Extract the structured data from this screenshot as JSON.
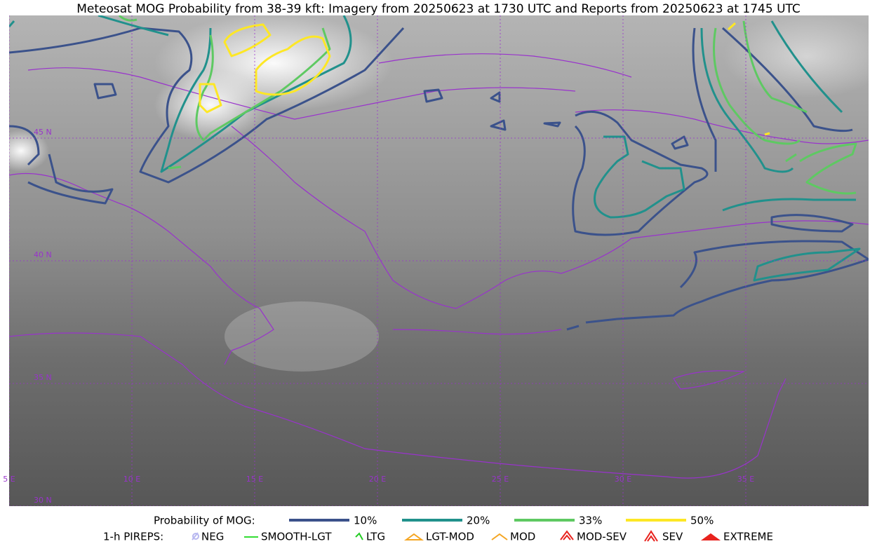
{
  "title": "Meteosat MOG Probability from 38-39 kft: Imagery from 20250623 at 1730 UTC and Reports from 20250623 at 1745 UTC",
  "map": {
    "latitude_labels": [
      "45 N",
      "40 N",
      "35 N",
      "30 N"
    ],
    "longitude_labels": [
      "5 E",
      "10 E",
      "15 E",
      "20 E",
      "25 E",
      "30 E",
      "35 E"
    ]
  },
  "legend": {
    "probability": {
      "label": "Probability of MOG:",
      "items": [
        {
          "label": "10%",
          "color": "#3b528b"
        },
        {
          "label": "20%",
          "color": "#21918c"
        },
        {
          "label": "33%",
          "color": "#5ec962"
        },
        {
          "label": "50%",
          "color": "#fde725"
        }
      ]
    },
    "pireps": {
      "label": "1-h PIREPS:",
      "items": [
        {
          "label": "NEG",
          "color": "#b8b8f0"
        },
        {
          "label": "SMOOTH-LGT",
          "color": "#33dd33"
        },
        {
          "label": "LTG",
          "color": "#22cc22"
        },
        {
          "label": "LGT-MOD",
          "color": "#f5a623"
        },
        {
          "label": "MOD",
          "color": "#f5a623"
        },
        {
          "label": "MOD-SEV",
          "color": "#e8231e"
        },
        {
          "label": "SEV",
          "color": "#e8231e"
        },
        {
          "label": "EXTREME",
          "color": "#e8231e"
        }
      ]
    }
  }
}
